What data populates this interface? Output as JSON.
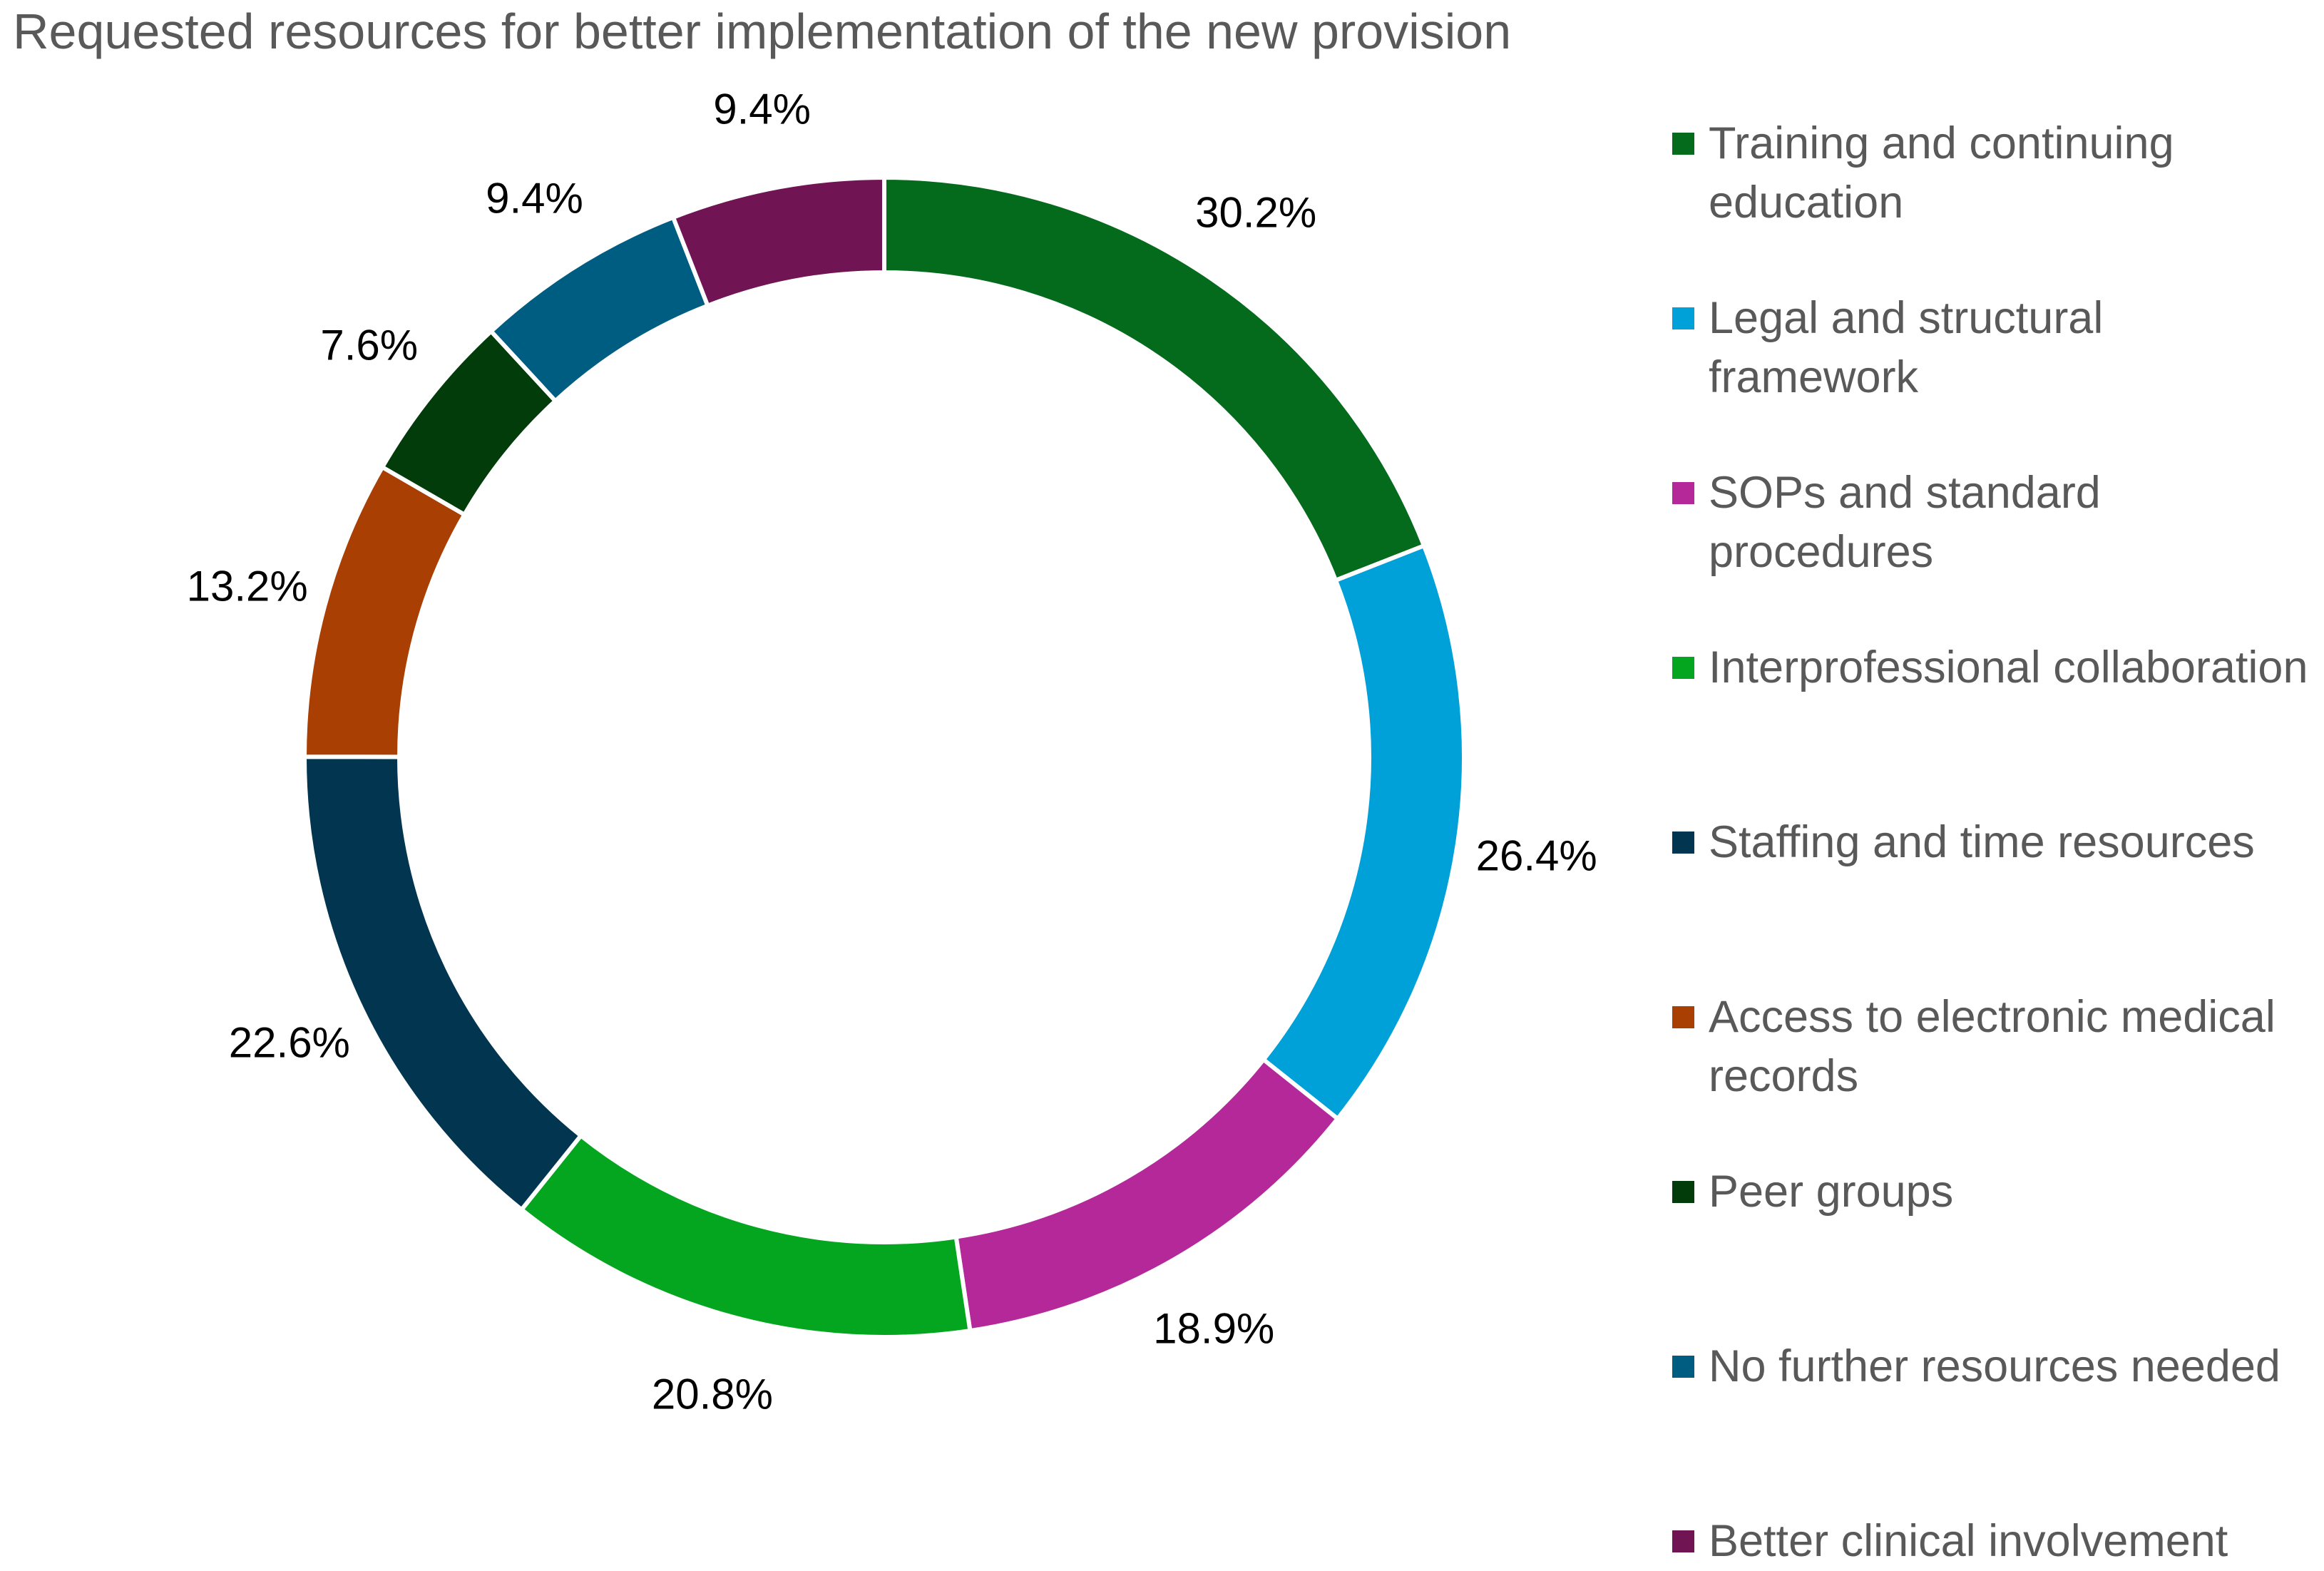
{
  "title": "Requested resources for better implementation of the new provision",
  "chart_data": {
    "type": "doughnut",
    "title": "Requested resources for better implementation of the new provision",
    "categories": [
      "Training and continuing education",
      "Legal and structural framework",
      "SOPs and standard procedures",
      "Interprofessional collaboration",
      "Staffing and time resources",
      "Access to electronic medical records",
      "Peer groups",
      "No further resources needed",
      "Better clinical involvement"
    ],
    "values": [
      30.2,
      26.4,
      18.9,
      20.8,
      22.6,
      13.2,
      7.6,
      9.4,
      9.4
    ],
    "value_labels": [
      "30.2%",
      "26.4%",
      "18.9%",
      "20.8%",
      "22.6%",
      "13.2%",
      "7.6%",
      "9.4%",
      "9.4%"
    ],
    "colors": [
      "#046a1c",
      "#00a0d8",
      "#b5289a",
      "#03a61e",
      "#02354f",
      "#a93f03",
      "#033c0b",
      "#005d82",
      "#701454"
    ],
    "start_angle": "12 o'clock",
    "direction": "clockwise",
    "legend_position": "right"
  }
}
